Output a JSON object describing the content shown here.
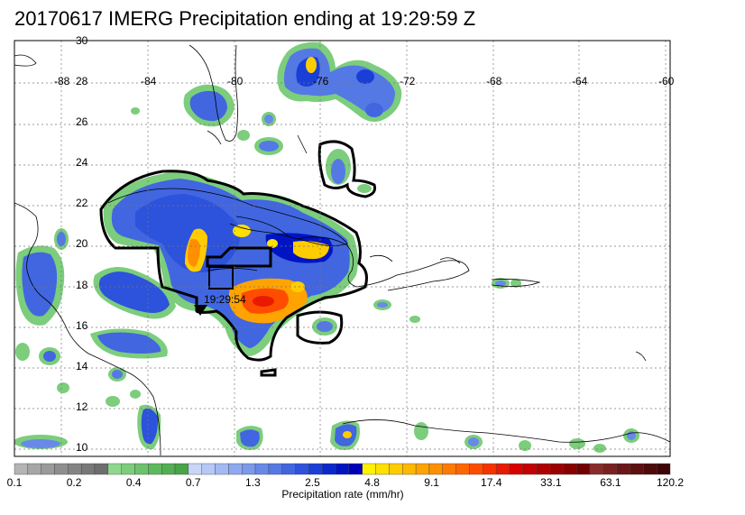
{
  "title": "20170617 IMERG Precipitation ending at 19:29:59 Z",
  "lat_labels": [
    "30",
    "28",
    "26",
    "24",
    "22",
    "20",
    "18",
    "16",
    "14",
    "12",
    "10"
  ],
  "lon_labels": [
    "-88",
    "-84",
    "-80",
    "-76",
    "-72",
    "-68",
    "-64",
    "-60"
  ],
  "storm_time_label": "19:29:54",
  "colorbar": {
    "title": "Precipitation rate (mm/hr)",
    "tick_labels": [
      "0.1",
      "0.2",
      "0.4",
      "0.7",
      "1.3",
      "2.5",
      "4.8",
      "9.1",
      "17.4",
      "33.1",
      "63.1",
      "120.2"
    ],
    "colors": [
      "#b4b4b4",
      "#a6a6a6",
      "#9a9a9a",
      "#8e8e8e",
      "#838383",
      "#787878",
      "#6e6e6e",
      "#8fd88f",
      "#7ccd7c",
      "#6cc36c",
      "#5eb95e",
      "#52ae52",
      "#47a447",
      "#c9d6f8",
      "#b6c8f6",
      "#a3b9f3",
      "#8fa9f0",
      "#7c99ec",
      "#6889e8",
      "#5479e4",
      "#4166e0",
      "#2d52dc",
      "#1a3ed8",
      "#0a28cf",
      "#0014c4",
      "#0000b8",
      "#fff200",
      "#ffe000",
      "#ffcc00",
      "#ffb800",
      "#ffa300",
      "#ff8f00",
      "#ff7a00",
      "#ff6600",
      "#ff4d00",
      "#f53300",
      "#e81a00",
      "#d90000",
      "#c40000",
      "#ae0000",
      "#9a0000",
      "#860000",
      "#720000",
      "#8a2b2b",
      "#7a2020",
      "#6b1717",
      "#5c1010",
      "#4d0a0a",
      "#3f0505"
    ]
  },
  "chart_data": {
    "type": "heatmap",
    "title": "20170617 IMERG Precipitation ending at 19:29:59 Z",
    "xlabel": "",
    "ylabel": "",
    "xlim": [
      -90,
      -59
    ],
    "ylim": [
      9.5,
      30
    ],
    "units": "mm/hr",
    "color_scale_ticks": [
      0.1,
      0.2,
      0.4,
      0.7,
      1.3,
      2.5,
      4.8,
      9.1,
      17.4,
      33.1,
      63.1,
      120.2
    ],
    "grid": true,
    "annotations": [
      "19:29:54"
    ]
  }
}
